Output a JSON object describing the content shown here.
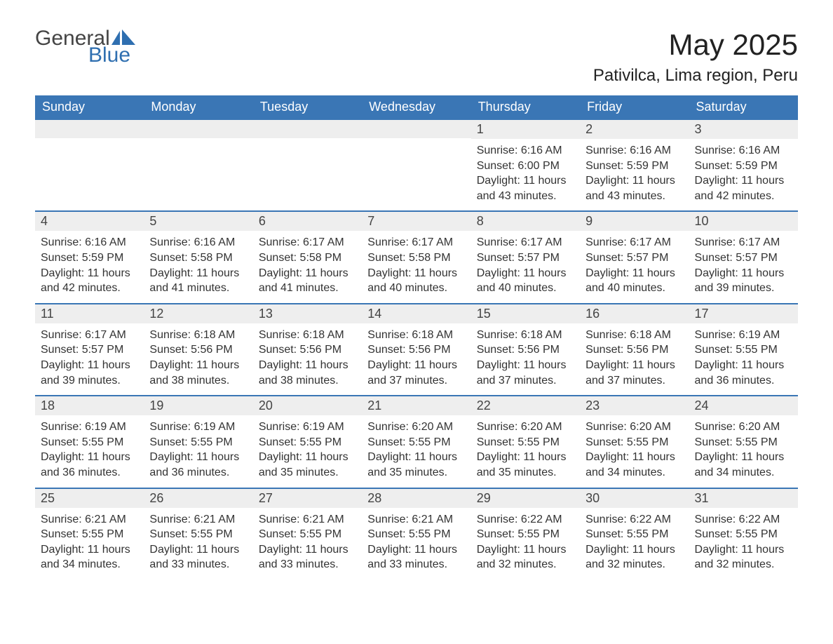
{
  "logo": {
    "general": "General",
    "blue": "Blue",
    "sail_color": "#2f6fb0"
  },
  "title": "May 2025",
  "location": "Pativilca, Lima region, Peru",
  "colors": {
    "header_bg": "#3a76b5",
    "header_text": "#ffffff",
    "daynum_bg": "#eeeeee",
    "week_border": "#3a76b5",
    "text": "#333333"
  },
  "weekdays": [
    "Sunday",
    "Monday",
    "Tuesday",
    "Wednesday",
    "Thursday",
    "Friday",
    "Saturday"
  ],
  "weeks": [
    [
      {
        "day": "",
        "sunrise": "",
        "sunset": "",
        "daylight": ""
      },
      {
        "day": "",
        "sunrise": "",
        "sunset": "",
        "daylight": ""
      },
      {
        "day": "",
        "sunrise": "",
        "sunset": "",
        "daylight": ""
      },
      {
        "day": "",
        "sunrise": "",
        "sunset": "",
        "daylight": ""
      },
      {
        "day": "1",
        "sunrise": "Sunrise: 6:16 AM",
        "sunset": "Sunset: 6:00 PM",
        "daylight": "Daylight: 11 hours and 43 minutes."
      },
      {
        "day": "2",
        "sunrise": "Sunrise: 6:16 AM",
        "sunset": "Sunset: 5:59 PM",
        "daylight": "Daylight: 11 hours and 43 minutes."
      },
      {
        "day": "3",
        "sunrise": "Sunrise: 6:16 AM",
        "sunset": "Sunset: 5:59 PM",
        "daylight": "Daylight: 11 hours and 42 minutes."
      }
    ],
    [
      {
        "day": "4",
        "sunrise": "Sunrise: 6:16 AM",
        "sunset": "Sunset: 5:59 PM",
        "daylight": "Daylight: 11 hours and 42 minutes."
      },
      {
        "day": "5",
        "sunrise": "Sunrise: 6:16 AM",
        "sunset": "Sunset: 5:58 PM",
        "daylight": "Daylight: 11 hours and 41 minutes."
      },
      {
        "day": "6",
        "sunrise": "Sunrise: 6:17 AM",
        "sunset": "Sunset: 5:58 PM",
        "daylight": "Daylight: 11 hours and 41 minutes."
      },
      {
        "day": "7",
        "sunrise": "Sunrise: 6:17 AM",
        "sunset": "Sunset: 5:58 PM",
        "daylight": "Daylight: 11 hours and 40 minutes."
      },
      {
        "day": "8",
        "sunrise": "Sunrise: 6:17 AM",
        "sunset": "Sunset: 5:57 PM",
        "daylight": "Daylight: 11 hours and 40 minutes."
      },
      {
        "day": "9",
        "sunrise": "Sunrise: 6:17 AM",
        "sunset": "Sunset: 5:57 PM",
        "daylight": "Daylight: 11 hours and 40 minutes."
      },
      {
        "day": "10",
        "sunrise": "Sunrise: 6:17 AM",
        "sunset": "Sunset: 5:57 PM",
        "daylight": "Daylight: 11 hours and 39 minutes."
      }
    ],
    [
      {
        "day": "11",
        "sunrise": "Sunrise: 6:17 AM",
        "sunset": "Sunset: 5:57 PM",
        "daylight": "Daylight: 11 hours and 39 minutes."
      },
      {
        "day": "12",
        "sunrise": "Sunrise: 6:18 AM",
        "sunset": "Sunset: 5:56 PM",
        "daylight": "Daylight: 11 hours and 38 minutes."
      },
      {
        "day": "13",
        "sunrise": "Sunrise: 6:18 AM",
        "sunset": "Sunset: 5:56 PM",
        "daylight": "Daylight: 11 hours and 38 minutes."
      },
      {
        "day": "14",
        "sunrise": "Sunrise: 6:18 AM",
        "sunset": "Sunset: 5:56 PM",
        "daylight": "Daylight: 11 hours and 37 minutes."
      },
      {
        "day": "15",
        "sunrise": "Sunrise: 6:18 AM",
        "sunset": "Sunset: 5:56 PM",
        "daylight": "Daylight: 11 hours and 37 minutes."
      },
      {
        "day": "16",
        "sunrise": "Sunrise: 6:18 AM",
        "sunset": "Sunset: 5:56 PM",
        "daylight": "Daylight: 11 hours and 37 minutes."
      },
      {
        "day": "17",
        "sunrise": "Sunrise: 6:19 AM",
        "sunset": "Sunset: 5:55 PM",
        "daylight": "Daylight: 11 hours and 36 minutes."
      }
    ],
    [
      {
        "day": "18",
        "sunrise": "Sunrise: 6:19 AM",
        "sunset": "Sunset: 5:55 PM",
        "daylight": "Daylight: 11 hours and 36 minutes."
      },
      {
        "day": "19",
        "sunrise": "Sunrise: 6:19 AM",
        "sunset": "Sunset: 5:55 PM",
        "daylight": "Daylight: 11 hours and 36 minutes."
      },
      {
        "day": "20",
        "sunrise": "Sunrise: 6:19 AM",
        "sunset": "Sunset: 5:55 PM",
        "daylight": "Daylight: 11 hours and 35 minutes."
      },
      {
        "day": "21",
        "sunrise": "Sunrise: 6:20 AM",
        "sunset": "Sunset: 5:55 PM",
        "daylight": "Daylight: 11 hours and 35 minutes."
      },
      {
        "day": "22",
        "sunrise": "Sunrise: 6:20 AM",
        "sunset": "Sunset: 5:55 PM",
        "daylight": "Daylight: 11 hours and 35 minutes."
      },
      {
        "day": "23",
        "sunrise": "Sunrise: 6:20 AM",
        "sunset": "Sunset: 5:55 PM",
        "daylight": "Daylight: 11 hours and 34 minutes."
      },
      {
        "day": "24",
        "sunrise": "Sunrise: 6:20 AM",
        "sunset": "Sunset: 5:55 PM",
        "daylight": "Daylight: 11 hours and 34 minutes."
      }
    ],
    [
      {
        "day": "25",
        "sunrise": "Sunrise: 6:21 AM",
        "sunset": "Sunset: 5:55 PM",
        "daylight": "Daylight: 11 hours and 34 minutes."
      },
      {
        "day": "26",
        "sunrise": "Sunrise: 6:21 AM",
        "sunset": "Sunset: 5:55 PM",
        "daylight": "Daylight: 11 hours and 33 minutes."
      },
      {
        "day": "27",
        "sunrise": "Sunrise: 6:21 AM",
        "sunset": "Sunset: 5:55 PM",
        "daylight": "Daylight: 11 hours and 33 minutes."
      },
      {
        "day": "28",
        "sunrise": "Sunrise: 6:21 AM",
        "sunset": "Sunset: 5:55 PM",
        "daylight": "Daylight: 11 hours and 33 minutes."
      },
      {
        "day": "29",
        "sunrise": "Sunrise: 6:22 AM",
        "sunset": "Sunset: 5:55 PM",
        "daylight": "Daylight: 11 hours and 32 minutes."
      },
      {
        "day": "30",
        "sunrise": "Sunrise: 6:22 AM",
        "sunset": "Sunset: 5:55 PM",
        "daylight": "Daylight: 11 hours and 32 minutes."
      },
      {
        "day": "31",
        "sunrise": "Sunrise: 6:22 AM",
        "sunset": "Sunset: 5:55 PM",
        "daylight": "Daylight: 11 hours and 32 minutes."
      }
    ]
  ]
}
